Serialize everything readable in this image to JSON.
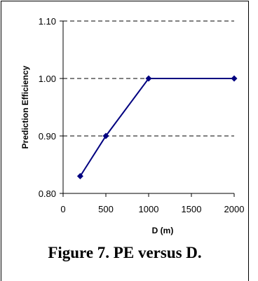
{
  "caption": "Figure 7. PE versus D.",
  "chart_data": {
    "type": "line",
    "x": [
      200,
      500,
      1000,
      2000
    ],
    "x_categories": [
      "200",
      "500",
      "1000",
      "2000"
    ],
    "series": [
      {
        "values": [
          0.83,
          0.9,
          1.0,
          1.0
        ]
      }
    ],
    "xlabel": "D (m)",
    "ylabel": "Prediction Efficiency",
    "xlim": [
      0,
      2000
    ],
    "ylim": [
      0.8,
      1.1
    ],
    "xticks": [
      "0",
      "500",
      "1000",
      "1500",
      "2000"
    ],
    "yticks": [
      "0.80",
      "0.90",
      "1.00",
      "1.10"
    ],
    "grid": "horizontal dashed",
    "line_color": "#000080",
    "marker": "diamond"
  }
}
